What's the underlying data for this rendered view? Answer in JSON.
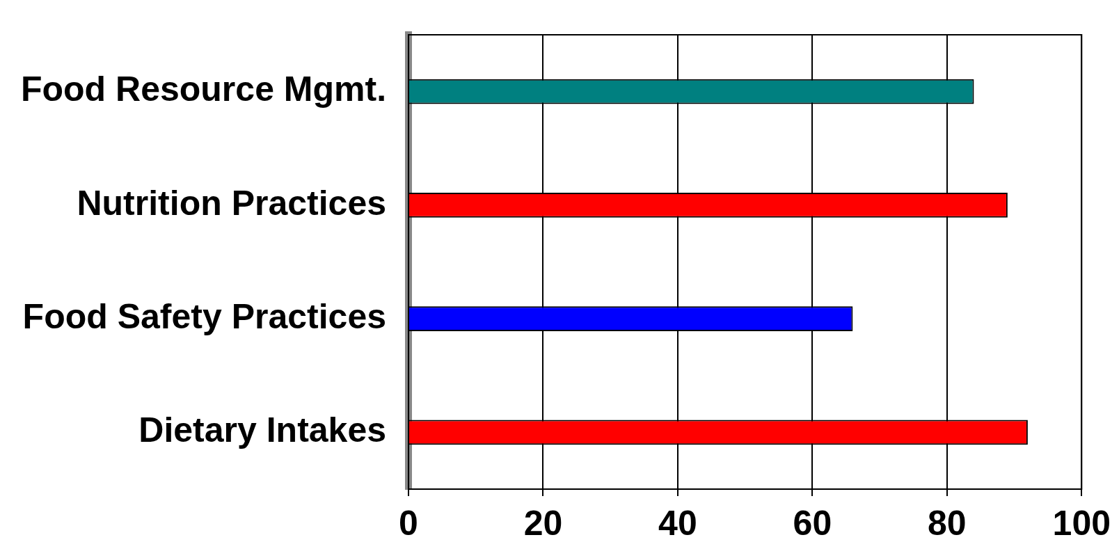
{
  "chart_data": {
    "type": "bar",
    "orientation": "horizontal",
    "categories": [
      "Food Resource Mgmt.",
      "Nutrition Practices",
      "Food Safety Practices",
      "Dietary Intakes"
    ],
    "values": [
      84,
      89,
      66,
      92
    ],
    "colors": [
      "#008080",
      "#ff0000",
      "#0000ff",
      "#ff0000"
    ],
    "xlim": [
      0,
      100
    ],
    "xticks": [
      0,
      20,
      40,
      60,
      80,
      100
    ],
    "grid": "x",
    "legend": false
  }
}
